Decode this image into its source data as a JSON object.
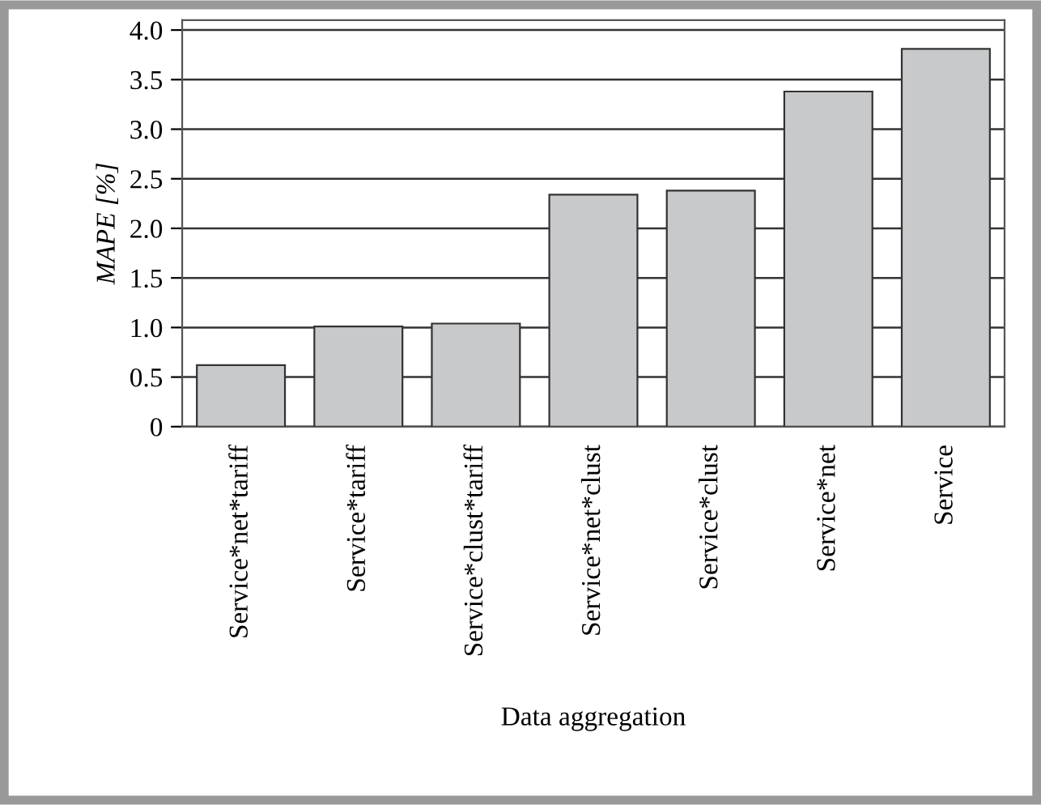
{
  "chart_data": {
    "type": "bar",
    "xlabel": "Data aggregation",
    "ylabel": "MAPE [%]",
    "categories": [
      "Service*net*tariff",
      "Service*tariff",
      "Service*clust*tariff",
      "Service*net*clust",
      "Service*clust",
      "Service*net",
      "Service"
    ],
    "values": [
      0.62,
      1.01,
      1.04,
      2.34,
      2.38,
      3.38,
      3.81
    ],
    "color": "#c8c9cb",
    "ylim": [
      0,
      4.1
    ],
    "yticks": [
      {
        "value": 0,
        "label": "0"
      },
      0.5,
      {
        "value": 1,
        "label": "1.0"
      },
      1.5,
      {
        "value": 2,
        "label": "2.0"
      },
      2.5,
      {
        "value": 3,
        "label": "3.0"
      },
      3.5,
      {
        "value": 4,
        "label": "4.0"
      }
    ],
    "grid": "y",
    "legend": false
  }
}
